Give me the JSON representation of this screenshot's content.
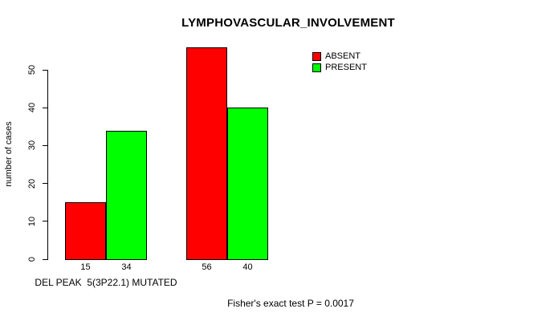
{
  "chart_data": {
    "type": "bar",
    "title": "LYMPHOVASCULAR_INVOLVEMENT",
    "ylabel": "number of cases",
    "xlabel": "",
    "categories": [
      "DEL PEAK  5(3P22.1) MUTATED",
      ""
    ],
    "series": [
      {
        "name": "ABSENT",
        "color": "#ff0000",
        "values": [
          15,
          56
        ]
      },
      {
        "name": "PRESENT",
        "color": "#00ff00",
        "values": [
          34,
          40
        ]
      }
    ],
    "value_labels": [
      [
        15,
        34
      ],
      [
        56,
        40
      ]
    ],
    "yticks": [
      0,
      10,
      20,
      30,
      40,
      50
    ],
    "ylim": [
      0,
      50
    ],
    "grid": false,
    "legend_position": "top-right",
    "annotation": "Fisher's exact test P = 0.0017",
    "colors": {
      "absent": "#ff0000",
      "present": "#00ff00",
      "axis": "#000000",
      "background": "#ffffff"
    }
  }
}
